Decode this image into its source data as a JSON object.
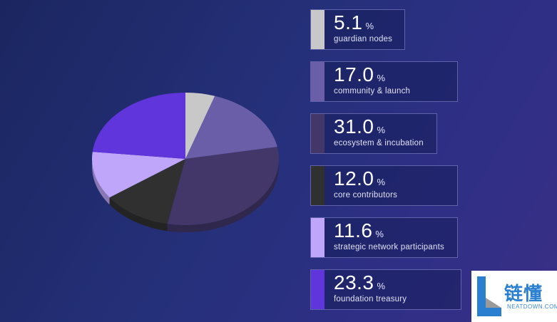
{
  "chart_data": {
    "type": "pie",
    "slices": [
      {
        "label": "guardian nodes",
        "value": 5.1,
        "display": "5.1",
        "color": "#c8c8c8"
      },
      {
        "label": "community & launch",
        "value": 17.0,
        "display": "17.0",
        "color": "#6b5ea8"
      },
      {
        "label": "ecosystem & incubation",
        "value": 31.0,
        "display": "31.0",
        "color": "#433769"
      },
      {
        "label": "core contributors",
        "value": 12.0,
        "display": "12.0",
        "color": "#303030"
      },
      {
        "label": "strategic network participants",
        "value": 11.6,
        "display": "11.6",
        "color": "#bfa6fb"
      },
      {
        "label": "foundation treasury",
        "value": 23.3,
        "display": "23.3",
        "color": "#6035dc"
      }
    ],
    "unit": "%",
    "legend_position": "right"
  },
  "watermark": {
    "text_cn": "链懂",
    "text_en": "NEATDOWN.COM",
    "logo_color": "#2a7fd0"
  }
}
